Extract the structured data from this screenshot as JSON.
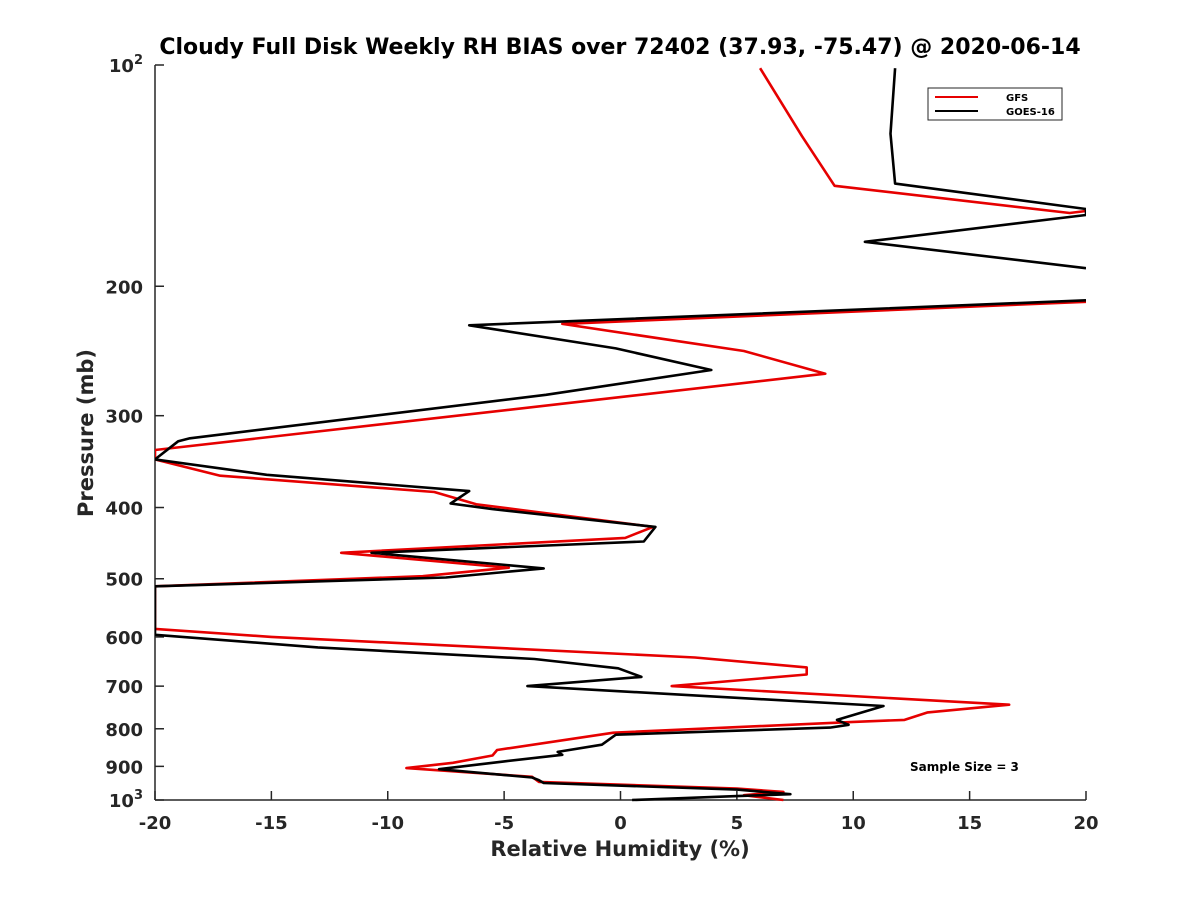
{
  "chart_data": {
    "type": "line",
    "title": "Cloudy Full Disk Weekly RH BIAS over 72402 (37.93, -75.47) @ 2020-06-14",
    "xlabel": "Relative Humidity (%)",
    "ylabel": "Pressure (mb)",
    "xlim": [
      -20,
      20
    ],
    "ylim": [
      100,
      1000
    ],
    "y_scale": "log",
    "y_reversed": true,
    "grid": false,
    "legend_position": "top-right",
    "x_ticks": [
      "-20",
      "-15",
      "-10",
      "-5",
      "0",
      "5",
      "10",
      "15",
      "20"
    ],
    "y_ticks": [
      {
        "value": 100,
        "base": "10",
        "exp": "2"
      },
      {
        "value": 200,
        "label": "200"
      },
      {
        "value": 300,
        "label": "300"
      },
      {
        "value": 400,
        "label": "400"
      },
      {
        "value": 500,
        "label": "500"
      },
      {
        "value": 600,
        "label": "600"
      },
      {
        "value": 700,
        "label": "700"
      },
      {
        "value": 800,
        "label": "800"
      },
      {
        "value": 900,
        "label": "900"
      },
      {
        "value": 1000,
        "base": "10",
        "exp": "3"
      }
    ],
    "annotation": "Sample Size = 3",
    "series": [
      {
        "name": "GFS",
        "color": "#e60000",
        "points": [
          [
            7.0,
            1000
          ],
          [
            5.3,
            985
          ],
          [
            7.0,
            975
          ],
          [
            5.0,
            965
          ],
          [
            -3.5,
            945
          ],
          [
            -3.8,
            930
          ],
          [
            -9.2,
            905
          ],
          [
            -7.2,
            890
          ],
          [
            -5.5,
            870
          ],
          [
            -5.3,
            855
          ],
          [
            -0.3,
            810
          ],
          [
            10.0,
            783
          ],
          [
            12.2,
            778
          ],
          [
            13.2,
            760
          ],
          [
            16.7,
            742
          ],
          [
            2.2,
            700
          ],
          [
            8.0,
            675
          ],
          [
            8.0,
            660
          ],
          [
            3.2,
            640
          ],
          [
            -15.0,
            600
          ],
          [
            -20.0,
            585
          ],
          [
            -20.0,
            583
          ],
          [
            -20,
            512
          ],
          [
            -8.5,
            496
          ],
          [
            -4.8,
            483
          ],
          [
            -12.0,
            461
          ],
          [
            0.2,
            440
          ],
          [
            1.4,
            425
          ],
          [
            -6.2,
            396
          ],
          [
            -8.0,
            381
          ],
          [
            -17.2,
            362
          ],
          [
            -20.0,
            344
          ],
          [
            -20.0,
            334
          ],
          [
            0.0,
            283
          ],
          [
            8.8,
            263
          ],
          [
            5.3,
            245
          ],
          [
            -2.5,
            225
          ],
          [
            20,
            210
          ]
        ]
      },
      {
        "name": "GOES-16",
        "color": "#000000",
        "points": [
          [
            0.5,
            1000
          ],
          [
            5.0,
            988
          ],
          [
            7.3,
            982
          ],
          [
            5.0,
            968
          ],
          [
            -3.3,
            948
          ],
          [
            -3.5,
            940
          ],
          [
            -3.8,
            932
          ],
          [
            -7.8,
            908
          ],
          [
            -5.0,
            886
          ],
          [
            -2.5,
            868
          ],
          [
            -2.7,
            860
          ],
          [
            -0.8,
            841
          ],
          [
            -0.2,
            815
          ],
          [
            9.0,
            797
          ],
          [
            9.8,
            790
          ],
          [
            9.3,
            778
          ],
          [
            11.3,
            745
          ],
          [
            -4.0,
            700
          ],
          [
            0.9,
            680
          ],
          [
            -0.1,
            662
          ],
          [
            -3.7,
            643
          ],
          [
            -13.0,
            620
          ],
          [
            -20.0,
            596
          ],
          [
            -20,
            512
          ],
          [
            -7.5,
            498
          ],
          [
            -3.3,
            484
          ],
          [
            -10.7,
            461
          ],
          [
            1.0,
            445
          ],
          [
            1.5,
            425
          ],
          [
            -5.5,
            402
          ],
          [
            -7.3,
            395
          ],
          [
            -6.5,
            380
          ],
          [
            -15.2,
            361
          ],
          [
            -20.0,
            344
          ],
          [
            -19.0,
            325
          ],
          [
            -18.5,
            322
          ],
          [
            -3.2,
            281
          ],
          [
            3.9,
            260
          ],
          [
            -0.2,
            243
          ],
          [
            -6.5,
            226
          ],
          [
            20,
            209
          ]
        ]
      }
    ],
    "upper_segments": {
      "GFS": [
        [
          20,
          158
        ],
        [
          19.3,
          159
        ],
        [
          9.2,
          146
        ],
        [
          7.8,
          125
        ],
        [
          6.0,
          101
        ]
      ],
      "GOES-16": [
        [
          20,
          189
        ],
        [
          10.5,
          174
        ],
        [
          20,
          160
        ],
        [
          20,
          157
        ],
        [
          11.8,
          145
        ],
        [
          11.6,
          124
        ],
        [
          11.8,
          101
        ]
      ]
    }
  }
}
